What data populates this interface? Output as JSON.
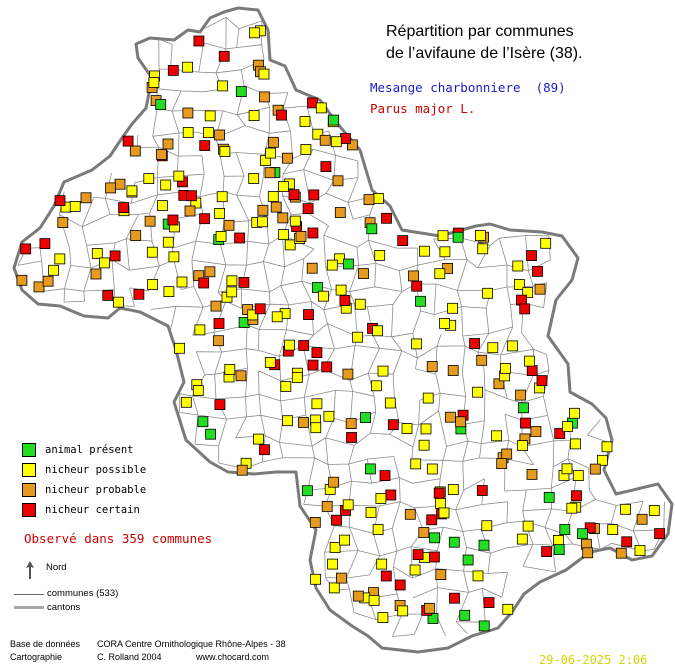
{
  "title_line1": "Répartition par communes",
  "title_line2": "de l’avifaune de l’Isère (38).",
  "species_common": "Mesange charbonniere  (89)",
  "species_latin": "Parus major L.",
  "legend": {
    "present": "animal présent",
    "possible": "nicheur possible",
    "probable": "nicheur probable",
    "certain": "nicheur certain"
  },
  "observed": "Observé dans 359 communes",
  "north_label": "Nord",
  "communes_label": "communes (533)",
  "cantons_label": "cantons",
  "footer": {
    "db_label": "Base de données",
    "db_value": "CORA Centre Ornithologique Rhône-Alpes - 38",
    "carto_label": "Cartographie",
    "carto_value": "C. Rolland 2004",
    "website": "www.chocard.com",
    "date": "29-06-2025 2:06"
  },
  "colors": {
    "present": "#22dd22",
    "possible": "#ffff00",
    "probable": "#e69a1e",
    "certain": "#ee0000",
    "species_common": "#1a1acc",
    "species_latin": "#cc0000",
    "observed": "#cc0000",
    "date": "#d4d400"
  }
}
